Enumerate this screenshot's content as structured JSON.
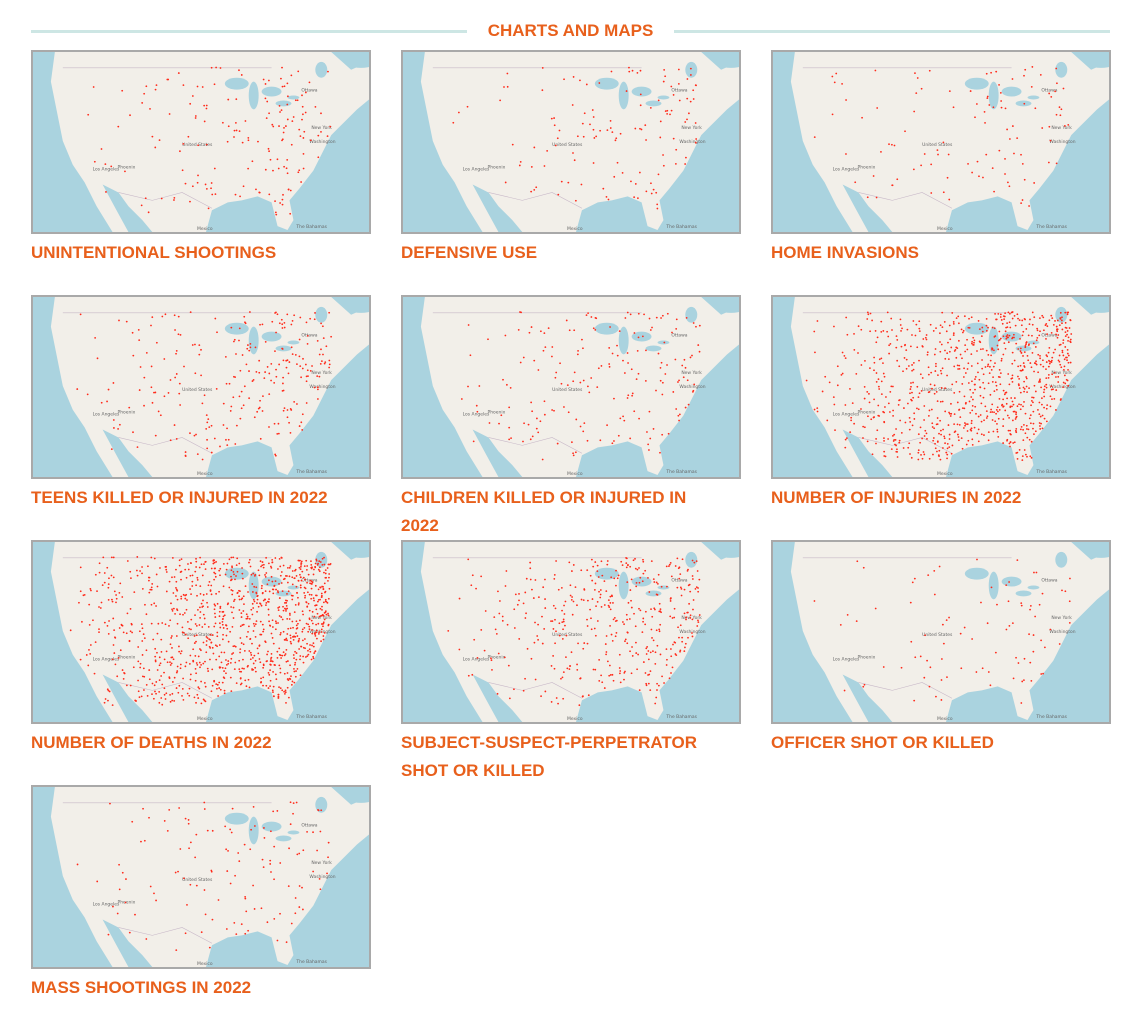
{
  "header": {
    "title": "CHARTS AND MAPS"
  },
  "map_labels": [
    "Ottawa",
    "New York",
    "Washington",
    "United States",
    "Los Angeles",
    "Phoenix",
    "Mexico",
    "The Bahamas"
  ],
  "cards": [
    {
      "title": "UNINTENTIONAL SHOOTINGS"
    },
    {
      "title": "DEFENSIVE USE"
    },
    {
      "title": "HOME INVASIONS"
    },
    {
      "title": "TEENS KILLED OR INJURED IN 2022"
    },
    {
      "title": "CHILDREN KILLED OR INJURED IN 2022"
    },
    {
      "title": "NUMBER OF INJURIES IN 2022"
    },
    {
      "title": "NUMBER OF DEATHS IN 2022"
    },
    {
      "title": "SUBJECT-SUSPECT-PERPETRATOR SHOT OR KILLED"
    },
    {
      "title": "OFFICER SHOT OR KILLED"
    },
    {
      "title": "MASS SHOOTINGS IN 2022"
    }
  ]
}
